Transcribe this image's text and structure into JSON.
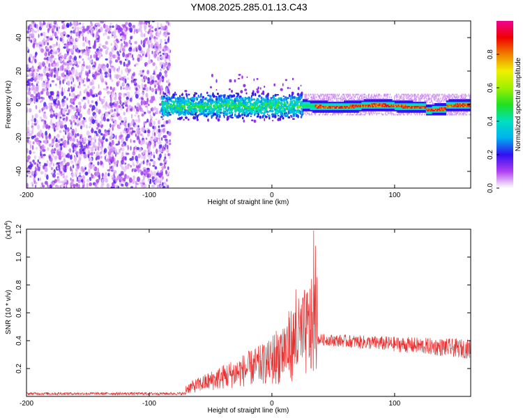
{
  "title": "YM08.2025.285.01.13.C43",
  "chart_data": [
    {
      "type": "heatmap",
      "title": "YM08.2025.285.01.13.C43",
      "xlabel": "Height of straight line (km)",
      "ylabel": "Frequency (Hz)",
      "xlim": [
        -200,
        162
      ],
      "ylim": [
        -50,
        50
      ],
      "xticks": [
        -200,
        -100,
        0,
        100
      ],
      "yticks": [
        -40,
        -20,
        0,
        20,
        40
      ],
      "colorbar": {
        "label": "Normalized spectral amplitude",
        "range": [
          0,
          1
        ],
        "ticks": [
          "0.0",
          "0.2",
          "0.4",
          "0.6",
          "0.8"
        ],
        "colormap": "rainbow (white-violet-blue-cyan-green-yellow-red-magenta)"
      },
      "regions": [
        {
          "x_range": [
            -200,
            -82
          ],
          "freq_range": [
            -50,
            50
          ],
          "amplitude": "low (0.05-0.2), scattered noise"
        },
        {
          "x_range": [
            -90,
            -55
          ],
          "freq_range": [
            -8,
            8
          ],
          "amplitude": "0.2-0.5, broadened band"
        },
        {
          "x_range": [
            -55,
            25
          ],
          "freq_range": [
            -10,
            8
          ],
          "amplitude": "0.2-0.5, broadened band with bursts to 20 Hz"
        },
        {
          "x_range": [
            25,
            162
          ],
          "freq_range": [
            -3,
            2
          ],
          "amplitude": "0.7-1.0, narrow band near 0 Hz"
        }
      ]
    },
    {
      "type": "line",
      "xlabel": "Height of straight line (km)",
      "ylabel": "SNR (10 * v/v)",
      "y_scale_label": "(x10",
      "y_scale_exponent": "4",
      "xlim": [
        -200,
        162
      ],
      "ylim": [
        0,
        1.2
      ],
      "xticks": [
        -200,
        -100,
        0,
        100
      ],
      "yticks": [
        "0.2",
        "0.4",
        "0.6",
        "0.8",
        "1.0",
        "1.2"
      ],
      "series": [
        {
          "name": "SNR",
          "color": "#e83232",
          "segments": [
            {
              "x_range": [
                -200,
                -70
              ],
              "mean": 0.02,
              "spread": 0.01
            },
            {
              "x_range": [
                -70,
                0
              ],
              "mean_start": 0.05,
              "mean_end": 0.3,
              "spread": "up to 0.35"
            },
            {
              "x_range": [
                0,
                37
              ],
              "mean_start": 0.3,
              "mean_end": 0.55,
              "spread": "large, peak 1.19 near x=34"
            },
            {
              "x_range": [
                37,
                162
              ],
              "mean_start": 0.41,
              "mean_end": 0.33,
              "spread": 0.05
            }
          ],
          "peak": {
            "x": 34,
            "y": 1.19
          }
        }
      ]
    }
  ],
  "colors": {
    "line": "#e83232",
    "frame": "#000000",
    "background": "#ffffff"
  }
}
